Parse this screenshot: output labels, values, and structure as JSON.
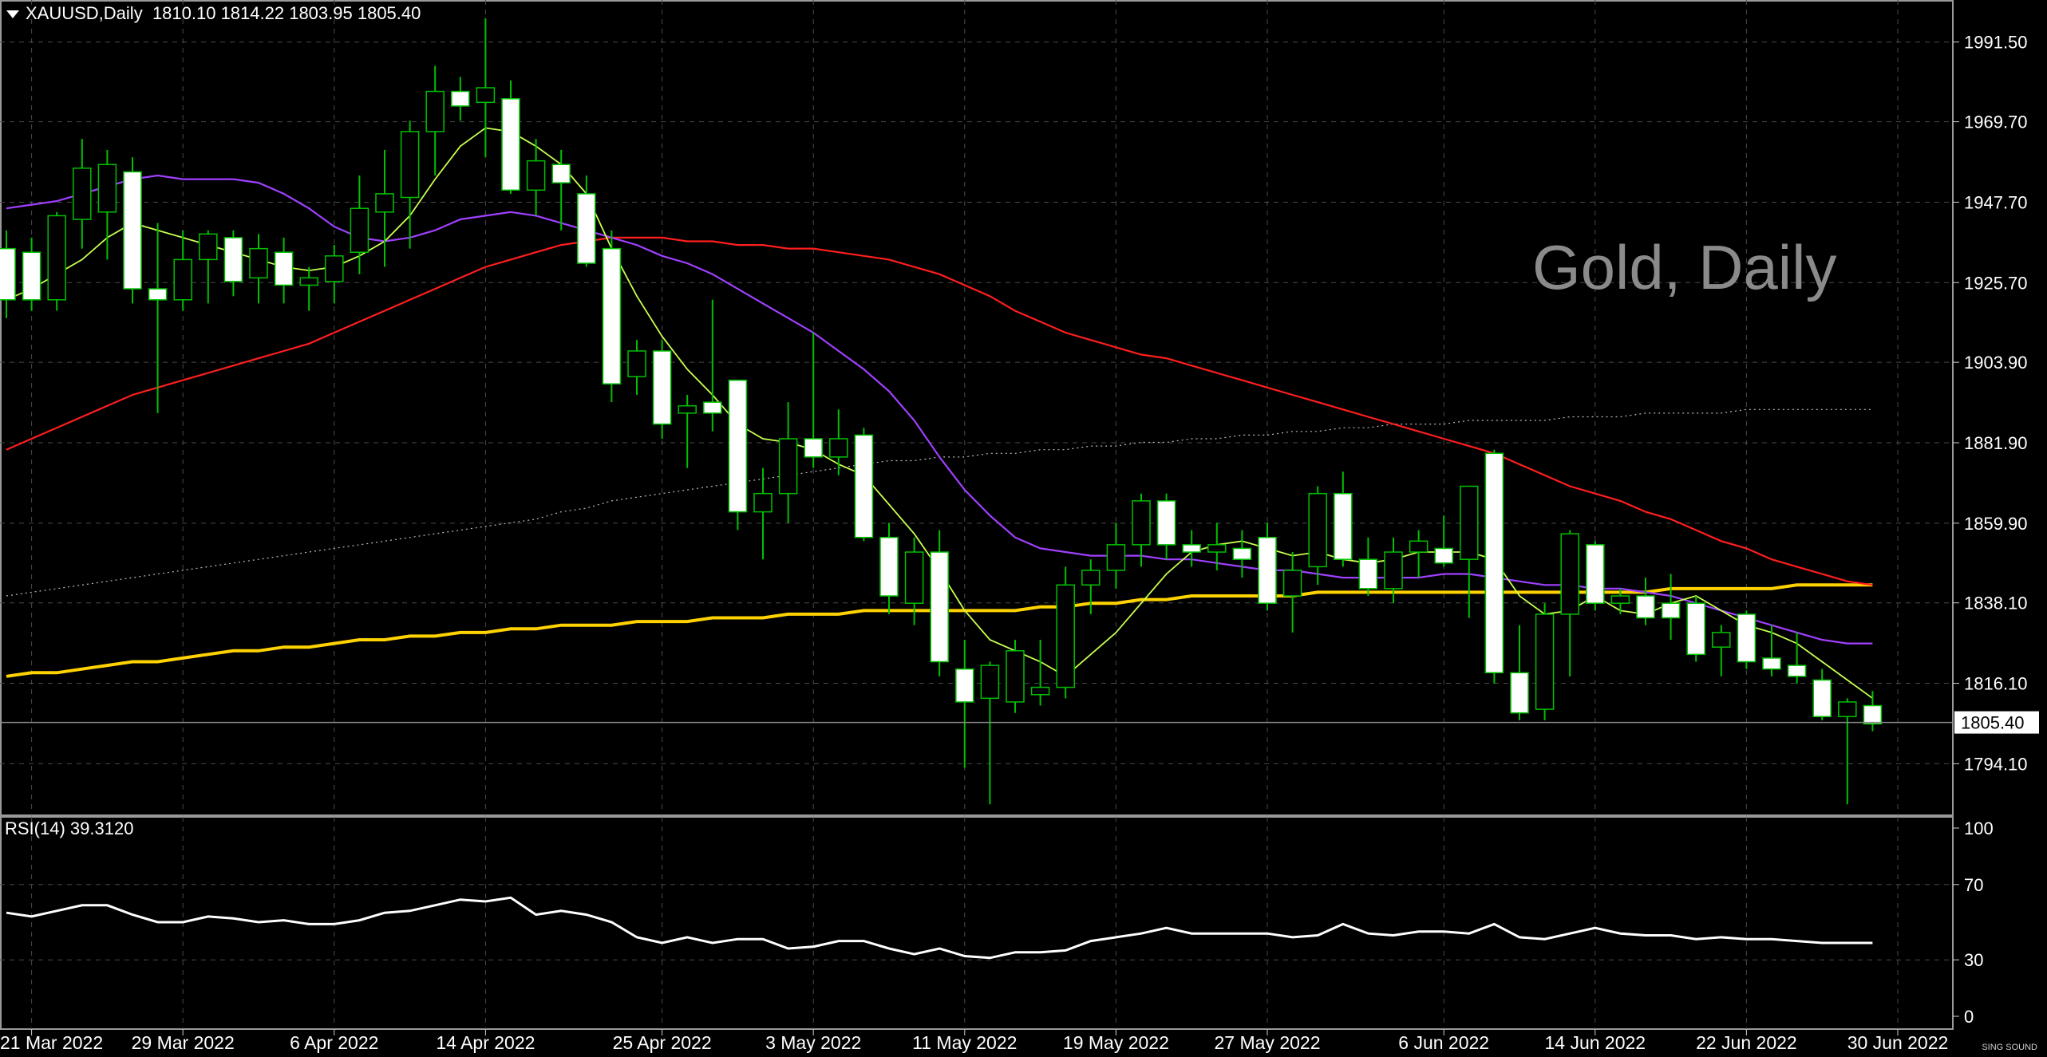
{
  "header": {
    "symbol": "XAUUSD,Daily",
    "ohlc": "1810.10 1814.22 1803.95 1805.40"
  },
  "watermark": "Gold, Daily",
  "rsi_label": "RSI(14) 39.3120",
  "logo_text": "SING SOUND",
  "colors": {
    "background": "#000000",
    "grid": "#4a4a4a",
    "candle_bull": "#000000",
    "candle_bear": "#ffffff",
    "candle_outline": "#00c000",
    "ma_fast": "#c8ff50",
    "ma_mid": "#a040ff",
    "ma_slow": "#ff1e1e",
    "ma_200": "#ffd200",
    "ma_dotted": "#bbbbbb",
    "rsi": "#ffffff"
  },
  "chart_data": [
    {
      "type": "candlestick",
      "symbol": "XAUUSD",
      "timeframe": "Daily",
      "title": "Gold, Daily",
      "ylim": [
        1780.0,
        2003.0
      ],
      "y_ticks": [
        "1991.50",
        "1969.70",
        "1947.70",
        "1925.70",
        "1903.90",
        "1881.90",
        "1859.90",
        "1838.10",
        "1816.10",
        "1794.10"
      ],
      "current_price": "1805.40",
      "x_tick_labels": [
        "21 Mar 2022",
        "29 Mar 2022",
        "6 Apr 2022",
        "14 Apr 2022",
        "25 Apr 2022",
        "3 May 2022",
        "11 May 2022",
        "19 May 2022",
        "27 May 2022",
        "6 Jun 2022",
        "14 Jun 2022",
        "22 Jun 2022",
        "30 Jun 2022"
      ],
      "x_tick_index": [
        1,
        7,
        13,
        19,
        26,
        32,
        38,
        44,
        50,
        57,
        63,
        69,
        75
      ],
      "candles": [
        {
          "o": 1935,
          "h": 1940,
          "l": 1916,
          "c": 1921
        },
        {
          "o": 1934,
          "h": 1938,
          "l": 1918,
          "c": 1921
        },
        {
          "o": 1921,
          "h": 1945,
          "l": 1918,
          "c": 1944
        },
        {
          "o": 1943,
          "h": 1965,
          "l": 1935,
          "c": 1957
        },
        {
          "o": 1945,
          "h": 1962,
          "l": 1932,
          "c": 1958
        },
        {
          "o": 1956,
          "h": 1960,
          "l": 1920,
          "c": 1924
        },
        {
          "o": 1924,
          "h": 1942,
          "l": 1890,
          "c": 1921
        },
        {
          "o": 1921,
          "h": 1940,
          "l": 1918,
          "c": 1932
        },
        {
          "o": 1932,
          "h": 1940,
          "l": 1920,
          "c": 1939
        },
        {
          "o": 1938,
          "h": 1940,
          "l": 1922,
          "c": 1926
        },
        {
          "o": 1927,
          "h": 1939,
          "l": 1920,
          "c": 1935
        },
        {
          "o": 1934,
          "h": 1938,
          "l": 1920,
          "c": 1925
        },
        {
          "o": 1925,
          "h": 1930,
          "l": 1918,
          "c": 1927
        },
        {
          "o": 1926,
          "h": 1936,
          "l": 1920,
          "c": 1933
        },
        {
          "o": 1934,
          "h": 1955,
          "l": 1928,
          "c": 1946
        },
        {
          "o": 1945,
          "h": 1962,
          "l": 1930,
          "c": 1950
        },
        {
          "o": 1949,
          "h": 1970,
          "l": 1935,
          "c": 1967
        },
        {
          "o": 1967,
          "h": 1985,
          "l": 1955,
          "c": 1978
        },
        {
          "o": 1978,
          "h": 1982,
          "l": 1970,
          "c": 1974
        },
        {
          "o": 1975,
          "h": 1998,
          "l": 1960,
          "c": 1979
        },
        {
          "o": 1976,
          "h": 1981,
          "l": 1950,
          "c": 1951
        },
        {
          "o": 1951,
          "h": 1965,
          "l": 1944,
          "c": 1959
        },
        {
          "o": 1958,
          "h": 1962,
          "l": 1940,
          "c": 1953
        },
        {
          "o": 1950,
          "h": 1955,
          "l": 1930,
          "c": 1931
        },
        {
          "o": 1935,
          "h": 1940,
          "l": 1893,
          "c": 1898
        },
        {
          "o": 1900,
          "h": 1910,
          "l": 1895,
          "c": 1907
        },
        {
          "o": 1907,
          "h": 1910,
          "l": 1883,
          "c": 1887
        },
        {
          "o": 1890,
          "h": 1895,
          "l": 1875,
          "c": 1892
        },
        {
          "o": 1893,
          "h": 1921,
          "l": 1885,
          "c": 1890
        },
        {
          "o": 1899,
          "h": 1899,
          "l": 1858,
          "c": 1863
        },
        {
          "o": 1863,
          "h": 1875,
          "l": 1850,
          "c": 1868
        },
        {
          "o": 1868,
          "h": 1893,
          "l": 1860,
          "c": 1883
        },
        {
          "o": 1883,
          "h": 1912,
          "l": 1875,
          "c": 1878
        },
        {
          "o": 1878,
          "h": 1891,
          "l": 1873,
          "c": 1883
        },
        {
          "o": 1884,
          "h": 1886,
          "l": 1855,
          "c": 1856
        },
        {
          "o": 1856,
          "h": 1860,
          "l": 1835,
          "c": 1840
        },
        {
          "o": 1838,
          "h": 1856,
          "l": 1832,
          "c": 1852
        },
        {
          "o": 1852,
          "h": 1858,
          "l": 1818,
          "c": 1822
        },
        {
          "o": 1820,
          "h": 1828,
          "l": 1793,
          "c": 1811
        },
        {
          "o": 1812,
          "h": 1822,
          "l": 1783,
          "c": 1821
        },
        {
          "o": 1811,
          "h": 1828,
          "l": 1808,
          "c": 1825
        },
        {
          "o": 1813,
          "h": 1828,
          "l": 1810,
          "c": 1815
        },
        {
          "o": 1815,
          "h": 1848,
          "l": 1812,
          "c": 1843
        },
        {
          "o": 1843,
          "h": 1850,
          "l": 1835,
          "c": 1847
        },
        {
          "o": 1847,
          "h": 1860,
          "l": 1842,
          "c": 1854
        },
        {
          "o": 1854,
          "h": 1868,
          "l": 1848,
          "c": 1866
        },
        {
          "o": 1866,
          "h": 1868,
          "l": 1850,
          "c": 1854
        },
        {
          "o": 1854,
          "h": 1858,
          "l": 1848,
          "c": 1852
        },
        {
          "o": 1852,
          "h": 1860,
          "l": 1847,
          "c": 1854
        },
        {
          "o": 1853,
          "h": 1858,
          "l": 1845,
          "c": 1850
        },
        {
          "o": 1856,
          "h": 1860,
          "l": 1836,
          "c": 1838
        },
        {
          "o": 1840,
          "h": 1852,
          "l": 1830,
          "c": 1847
        },
        {
          "o": 1848,
          "h": 1870,
          "l": 1843,
          "c": 1868
        },
        {
          "o": 1868,
          "h": 1874,
          "l": 1848,
          "c": 1850
        },
        {
          "o": 1850,
          "h": 1856,
          "l": 1840,
          "c": 1842
        },
        {
          "o": 1842,
          "h": 1856,
          "l": 1838,
          "c": 1852
        },
        {
          "o": 1852,
          "h": 1858,
          "l": 1845,
          "c": 1855
        },
        {
          "o": 1853,
          "h": 1862,
          "l": 1848,
          "c": 1849
        },
        {
          "o": 1850,
          "h": 1870,
          "l": 1834,
          "c": 1870
        },
        {
          "o": 1879,
          "h": 1880,
          "l": 1816,
          "c": 1819
        },
        {
          "o": 1819,
          "h": 1832,
          "l": 1806,
          "c": 1808
        },
        {
          "o": 1809,
          "h": 1838,
          "l": 1806,
          "c": 1835
        },
        {
          "o": 1835,
          "h": 1858,
          "l": 1818,
          "c": 1857
        },
        {
          "o": 1854,
          "h": 1855,
          "l": 1836,
          "c": 1838
        },
        {
          "o": 1838,
          "h": 1842,
          "l": 1835,
          "c": 1840
        },
        {
          "o": 1840,
          "h": 1845,
          "l": 1832,
          "c": 1834
        },
        {
          "o": 1838,
          "h": 1846,
          "l": 1828,
          "c": 1834
        },
        {
          "o": 1838,
          "h": 1840,
          "l": 1822,
          "c": 1824
        },
        {
          "o": 1826,
          "h": 1832,
          "l": 1818,
          "c": 1830
        },
        {
          "o": 1835,
          "h": 1836,
          "l": 1820,
          "c": 1822
        },
        {
          "o": 1823,
          "h": 1832,
          "l": 1818,
          "c": 1820
        },
        {
          "o": 1821,
          "h": 1830,
          "l": 1816,
          "c": 1818
        },
        {
          "o": 1817,
          "h": 1820,
          "l": 1806,
          "c": 1807
        },
        {
          "o": 1807,
          "h": 1812,
          "l": 1783,
          "c": 1811
        },
        {
          "o": 1810,
          "h": 1814,
          "l": 1803,
          "c": 1805
        }
      ],
      "ma_fast": [
        1921,
        1924,
        1928,
        1932,
        1938,
        1942,
        1940,
        1938,
        1936,
        1934,
        1932,
        1930,
        1929,
        1930,
        1933,
        1937,
        1944,
        1954,
        1963,
        1968,
        1967,
        1963,
        1958,
        1950,
        1935,
        1922,
        1911,
        1902,
        1895,
        1887,
        1883,
        1882,
        1880,
        1876,
        1873,
        1865,
        1857,
        1847,
        1836,
        1828,
        1825,
        1822,
        1818,
        1824,
        1830,
        1838,
        1846,
        1852,
        1854,
        1855,
        1853,
        1851,
        1852,
        1850,
        1849,
        1850,
        1852,
        1852,
        1852,
        1850,
        1840,
        1835,
        1836,
        1840,
        1836,
        1835,
        1838,
        1840,
        1836,
        1832,
        1830,
        1827,
        1822,
        1817,
        1812
      ],
      "ma_mid": [
        1946,
        1947,
        1948,
        1950,
        1952,
        1954,
        1955,
        1954,
        1954,
        1954,
        1953,
        1950,
        1946,
        1941,
        1938,
        1937,
        1938,
        1940,
        1943,
        1944,
        1945,
        1944,
        1942,
        1940,
        1938,
        1936,
        1933,
        1931,
        1928,
        1924,
        1920,
        1916,
        1912,
        1907,
        1902,
        1896,
        1888,
        1878,
        1869,
        1862,
        1856,
        1853,
        1852,
        1851,
        1851,
        1851,
        1850,
        1850,
        1849,
        1848,
        1847,
        1847,
        1846,
        1845,
        1845,
        1845,
        1845,
        1846,
        1846,
        1845,
        1844,
        1843,
        1843,
        1842,
        1842,
        1841,
        1840,
        1838,
        1836,
        1834,
        1832,
        1830,
        1828,
        1827,
        1827
      ],
      "ma_slow": [
        1880,
        1883,
        1886,
        1889,
        1892,
        1895,
        1897,
        1899,
        1901,
        1903,
        1905,
        1907,
        1909,
        1912,
        1915,
        1918,
        1921,
        1924,
        1927,
        1930,
        1932,
        1934,
        1936,
        1937,
        1938,
        1938,
        1938,
        1937,
        1937,
        1936,
        1936,
        1935,
        1935,
        1934,
        1933,
        1932,
        1930,
        1928,
        1925,
        1922,
        1918,
        1915,
        1912,
        1910,
        1908,
        1906,
        1905,
        1903,
        1901,
        1899,
        1897,
        1895,
        1893,
        1891,
        1889,
        1887,
        1885,
        1883,
        1881,
        1879,
        1876,
        1873,
        1870,
        1868,
        1866,
        1863,
        1861,
        1858,
        1855,
        1853,
        1850,
        1848,
        1846,
        1844,
        1843
      ],
      "ma_200": [
        1818,
        1819,
        1819,
        1820,
        1821,
        1822,
        1822,
        1823,
        1824,
        1825,
        1825,
        1826,
        1826,
        1827,
        1828,
        1828,
        1829,
        1829,
        1830,
        1830,
        1831,
        1831,
        1832,
        1832,
        1832,
        1833,
        1833,
        1833,
        1834,
        1834,
        1834,
        1835,
        1835,
        1835,
        1836,
        1836,
        1836,
        1836,
        1836,
        1836,
        1836,
        1837,
        1837,
        1838,
        1838,
        1839,
        1839,
        1840,
        1840,
        1840,
        1840,
        1840,
        1841,
        1841,
        1841,
        1841,
        1841,
        1841,
        1841,
        1841,
        1841,
        1841,
        1841,
        1841,
        1841,
        1841,
        1842,
        1842,
        1842,
        1842,
        1842,
        1843,
        1843,
        1843,
        1843
      ],
      "ma_dotted": [
        1840,
        1841,
        1842,
        1843,
        1844,
        1845,
        1846,
        1847,
        1848,
        1849,
        1850,
        1851,
        1852,
        1853,
        1854,
        1855,
        1856,
        1857,
        1858,
        1859,
        1860,
        1861,
        1863,
        1864,
        1866,
        1867,
        1868,
        1869,
        1870,
        1871,
        1872,
        1873,
        1874,
        1875,
        1876,
        1877,
        1877,
        1878,
        1878,
        1879,
        1879,
        1880,
        1880,
        1881,
        1881,
        1882,
        1882,
        1883,
        1883,
        1884,
        1884,
        1885,
        1885,
        1886,
        1886,
        1887,
        1887,
        1887,
        1888,
        1888,
        1888,
        1888,
        1889,
        1889,
        1889,
        1890,
        1890,
        1890,
        1890,
        1891,
        1891,
        1891,
        1891,
        1891,
        1891
      ]
    },
    {
      "type": "line",
      "title": "RSI(14) 39.3120",
      "ylim": [
        0,
        100
      ],
      "y_ticks": [
        "100",
        "70",
        "30",
        "0"
      ],
      "series": [
        {
          "name": "RSI(14)",
          "values": [
            55,
            53,
            56,
            59,
            59,
            54,
            50,
            50,
            53,
            52,
            50,
            51,
            49,
            49,
            51,
            55,
            56,
            59,
            62,
            61,
            63,
            54,
            56,
            54,
            50,
            42,
            39,
            42,
            39,
            41,
            41,
            36,
            37,
            40,
            40,
            36,
            33,
            36,
            32,
            31,
            34,
            34,
            35,
            40,
            42,
            44,
            47,
            44,
            44,
            44,
            44,
            42,
            43,
            49,
            44,
            43,
            45,
            45,
            44,
            49,
            42,
            41,
            44,
            47,
            44,
            43,
            43,
            41,
            42,
            41,
            41,
            40,
            39,
            39,
            39
          ]
        }
      ]
    }
  ]
}
